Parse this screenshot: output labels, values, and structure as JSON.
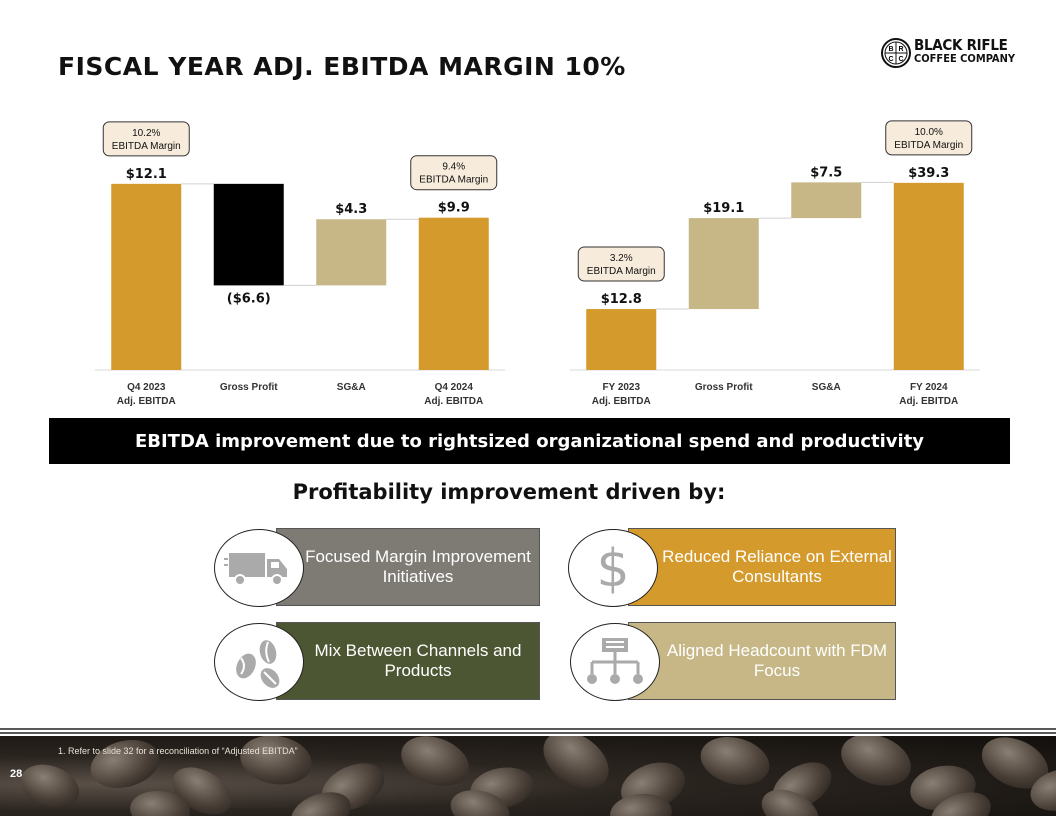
{
  "title": "FISCAL YEAR ADJ. EBITDA MARGIN 10%",
  "logo": {
    "line1": "BLACK RIFLE",
    "line2": "COFFEE COMPANY",
    "badge": [
      "B",
      "R",
      "C",
      "C"
    ]
  },
  "colors": {
    "gold": "#D59A2C",
    "black": "#000000",
    "tan": "#C7B786",
    "olive": "#4C5632",
    "gray": "#7D7B73"
  },
  "chart_data": [
    {
      "type": "waterfall",
      "categories": [
        "Q4 2023\nAdj. EBITDA",
        "Gross Profit",
        "SG&A",
        "Q4 2024\nAdj. EBITDA"
      ],
      "values": [
        12.1,
        -6.6,
        4.3,
        9.9
      ],
      "labels": [
        "$12.1",
        "($6.6)",
        "$4.3",
        "$9.9"
      ],
      "kinds": [
        "total",
        "delta",
        "delta",
        "total"
      ],
      "ylim": [
        0,
        13
      ],
      "callouts": [
        {
          "category_index": 0,
          "line1": "10.2%",
          "line2": "EBITDA Margin"
        },
        {
          "category_index": 3,
          "line1": "9.4%",
          "line2": "EBITDA Margin"
        }
      ]
    },
    {
      "type": "waterfall",
      "categories": [
        "FY 2023\nAdj. EBITDA",
        "Gross Profit",
        "SG&A",
        "FY 2024\nAdj. EBITDA"
      ],
      "values": [
        12.8,
        19.1,
        7.5,
        39.3
      ],
      "labels": [
        "$12.8",
        "$19.1",
        "$7.5",
        "$39.3"
      ],
      "kinds": [
        "total",
        "delta",
        "delta",
        "total"
      ],
      "ylim": [
        0,
        42
      ],
      "callouts": [
        {
          "category_index": 0,
          "line1": "3.2%",
          "line2": "EBITDA Margin"
        },
        {
          "category_index": 3,
          "line1": "10.0%",
          "line2": "EBITDA Margin"
        }
      ]
    }
  ],
  "banner": "EBITDA improvement due to rightsized organizational spend and productivity",
  "subheading": "Profitability improvement driven by:",
  "drivers": [
    {
      "label": "Focused Margin Improvement Initiatives",
      "icon": "truck-icon"
    },
    {
      "label": "Reduced Reliance on External Consultants",
      "icon": "dollar-icon"
    },
    {
      "label": "Mix Between Channels and Products",
      "icon": "coffee-beans-icon"
    },
    {
      "label": "Aligned Headcount with FDM Focus",
      "icon": "org-chart-icon"
    }
  ],
  "footnote": "1.     Refer to slide 32 for a reconciliation of “Adjusted EBITDA”",
  "page_number": "28"
}
